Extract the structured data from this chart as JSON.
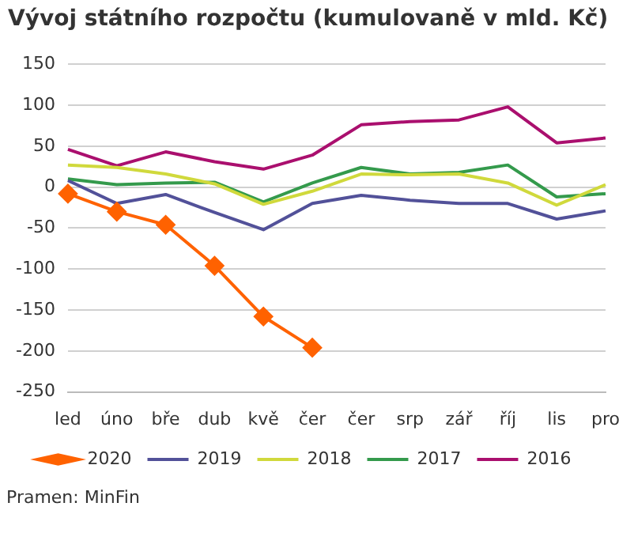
{
  "chart_data": {
    "type": "line",
    "title": "Vývoj státního rozpočtu (kumulovaně v mld. Kč)",
    "categories": [
      "led",
      "úno",
      "bře",
      "dub",
      "kvě",
      "čer",
      "čer",
      "srp",
      "zář",
      "říj",
      "lis",
      "pro"
    ],
    "ylim": [
      -250,
      150
    ],
    "yticks": [
      -250,
      -200,
      -150,
      -100,
      -50,
      0,
      50,
      100,
      150
    ],
    "grid": "y",
    "legend": "bottom",
    "series": [
      {
        "name": "2020",
        "color": "#ff6200",
        "marker": "diamond",
        "values": [
          -8,
          -30,
          -46,
          -96,
          -158,
          -196,
          null,
          null,
          null,
          null,
          null,
          null
        ]
      },
      {
        "name": "2019",
        "color": "#525199",
        "marker": "none",
        "values": [
          8,
          -20,
          -9,
          -31,
          -52,
          -20,
          -10,
          -16,
          -20,
          -20,
          -39,
          -29
        ]
      },
      {
        "name": "2018",
        "color": "#d0d93c",
        "marker": "none",
        "values": [
          27,
          24,
          16,
          4,
          -21,
          -5,
          16,
          15,
          16,
          5,
          -22,
          3
        ]
      },
      {
        "name": "2017",
        "color": "#349a4c",
        "marker": "none",
        "values": [
          10,
          3,
          5,
          6,
          -18,
          5,
          24,
          16,
          18,
          27,
          -12,
          -8
        ]
      },
      {
        "name": "2016",
        "color": "#aa0f6e",
        "marker": "none",
        "values": [
          46,
          26,
          43,
          31,
          22,
          39,
          76,
          80,
          82,
          98,
          54,
          60
        ]
      }
    ],
    "annotations": [
      "Pramen: MinFin"
    ]
  }
}
